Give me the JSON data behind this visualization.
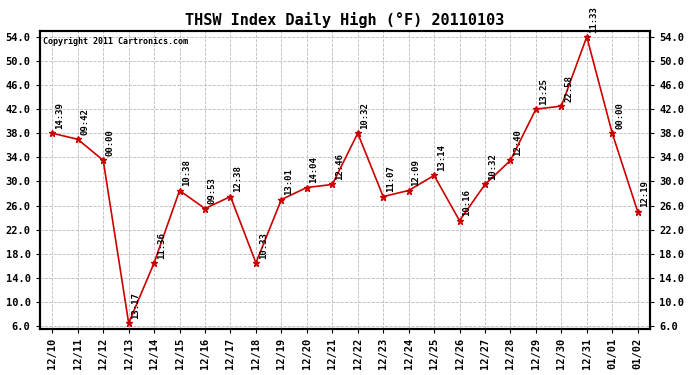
{
  "title": "THSW Index Daily High (°F) 20110103",
  "copyright": "Copyright 2011 Cartronics.com",
  "x_labels": [
    "12/10",
    "12/11",
    "12/12",
    "12/13",
    "12/14",
    "12/15",
    "12/16",
    "12/17",
    "12/18",
    "12/19",
    "12/20",
    "12/21",
    "12/22",
    "12/23",
    "12/24",
    "12/25",
    "12/26",
    "12/27",
    "12/28",
    "12/29",
    "12/30",
    "12/31",
    "01/01",
    "01/02"
  ],
  "y_values": [
    38.0,
    37.0,
    33.5,
    6.5,
    16.5,
    28.5,
    25.5,
    27.5,
    16.5,
    27.0,
    29.0,
    29.5,
    38.0,
    27.5,
    28.5,
    31.0,
    23.5,
    29.5,
    33.5,
    42.0,
    42.5,
    54.0,
    38.0,
    25.0
  ],
  "time_labels": [
    "14:39",
    "09:42",
    "00:00",
    "13:17",
    "11:36",
    "10:38",
    "09:53",
    "12:38",
    "10:33",
    "13:01",
    "14:04",
    "12:46",
    "10:32",
    "11:07",
    "12:09",
    "13:14",
    "10:16",
    "10:32",
    "12:40",
    "13:25",
    "22:58",
    "11:33",
    "00:00",
    "12:19"
  ],
  "y_min": 6.0,
  "y_max": 54.0,
  "y_ticks": [
    6.0,
    10.0,
    14.0,
    18.0,
    22.0,
    26.0,
    30.0,
    34.0,
    38.0,
    42.0,
    46.0,
    50.0,
    54.0
  ],
  "line_color": "#cc0000",
  "marker_color": "#cc0000",
  "bg_color": "#ffffff",
  "grid_color": "#bbbbbb",
  "title_fontsize": 11,
  "tick_fontsize": 7.5,
  "label_fontsize": 6.5
}
